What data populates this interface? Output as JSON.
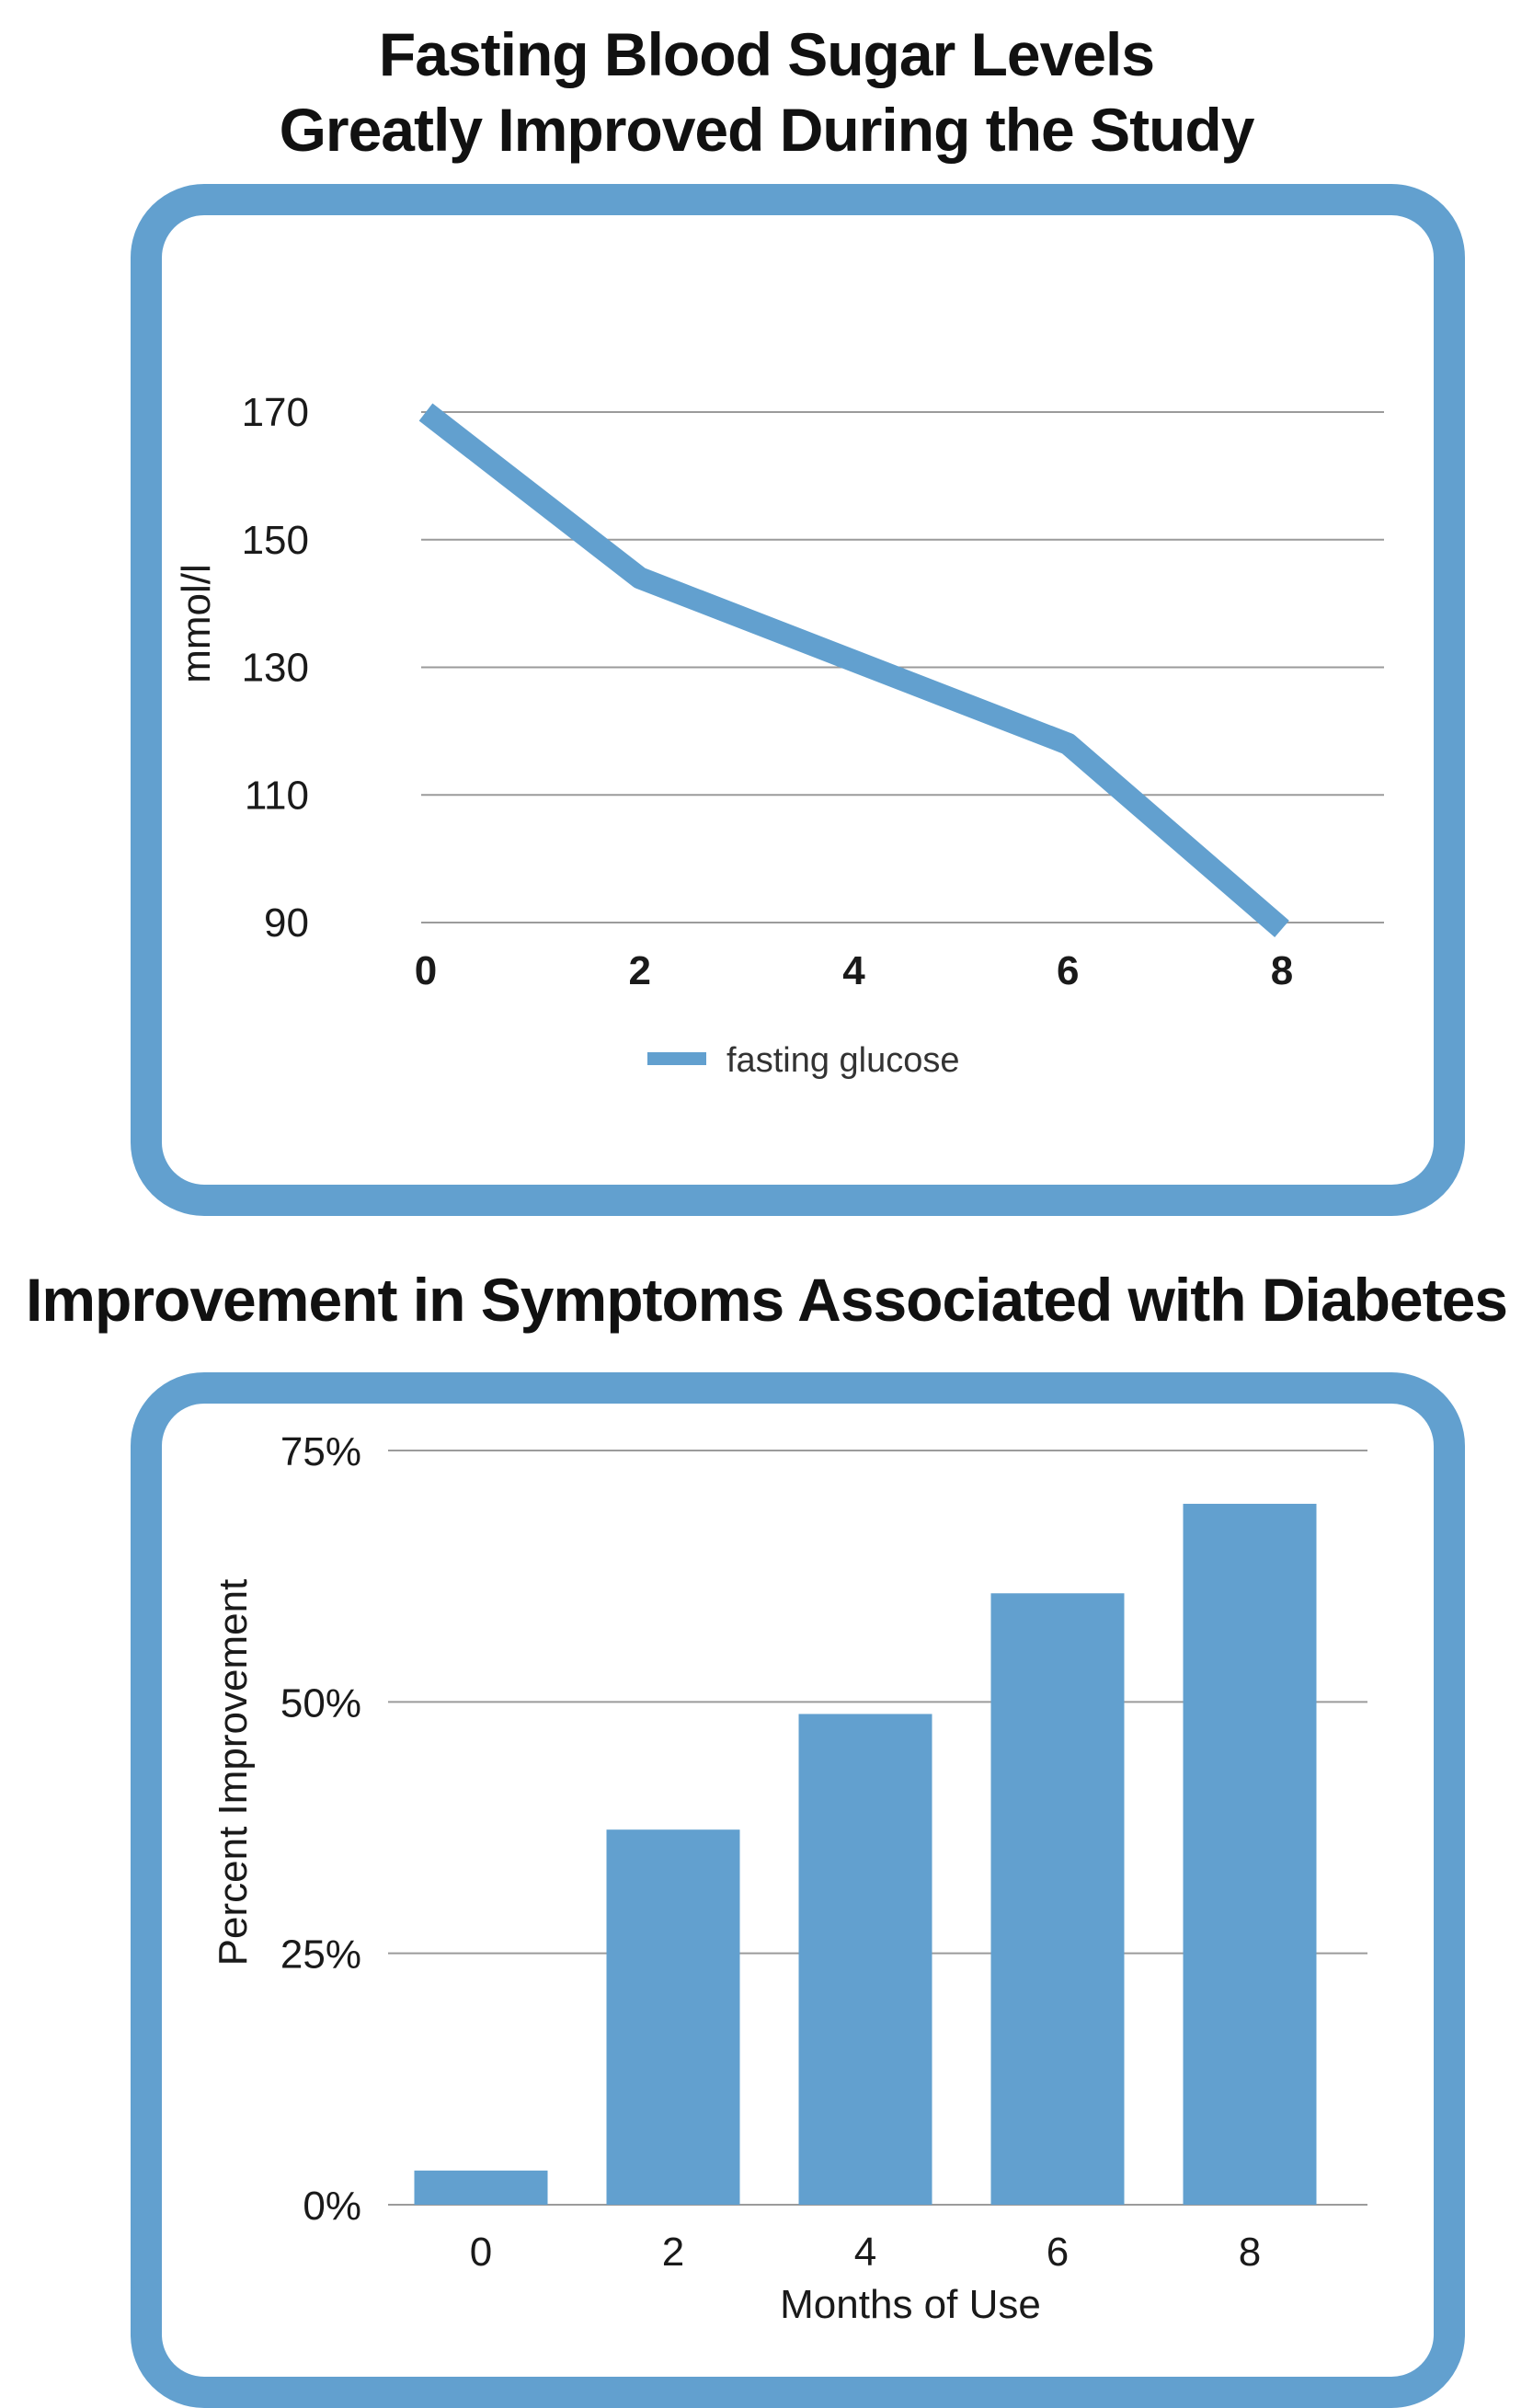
{
  "colors": {
    "accent": "#62a0cf",
    "gridline": "#9b9b9b",
    "text": "#1a1a1a"
  },
  "chart_data": [
    {
      "type": "line",
      "title": [
        "Fasting Blood Sugar Levels",
        "Greatly Improved During the Study"
      ],
      "xlabel": "",
      "ylabel": "mmol/l",
      "x": [
        0,
        2,
        4,
        6,
        8
      ],
      "x_tick_labels": [
        "0",
        "2",
        "4",
        "6",
        "8"
      ],
      "y_tick_labels": [
        "170",
        "150",
        "130",
        "110",
        "90"
      ],
      "ylim": [
        90,
        170
      ],
      "yticks": [
        170,
        150,
        130,
        110,
        90
      ],
      "grid": true,
      "legend": "bottom-center",
      "series": [
        {
          "name": "fasting glucose",
          "values": [
            170,
            144,
            131,
            118,
            89
          ],
          "color": "#62a0cf"
        }
      ]
    },
    {
      "type": "bar",
      "title": [
        "Improvement in Symptoms Associated with Diabetes"
      ],
      "xlabel": "Months of Use",
      "ylabel": "Percent Improvement",
      "categories": [
        "0",
        "2",
        "4",
        "6",
        "8"
      ],
      "values": [
        3.4,
        37.3,
        48.8,
        60.8,
        69.7
      ],
      "value_unit": "%",
      "y_tick_labels": [
        "75%",
        "50%",
        "25%",
        "0%"
      ],
      "yticks": [
        75,
        50,
        25,
        0
      ],
      "ylim": [
        0,
        75
      ],
      "grid": true,
      "color": "#62a0cf"
    }
  ]
}
